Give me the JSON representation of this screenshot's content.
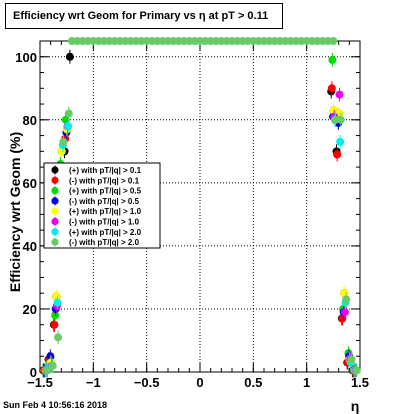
{
  "chart_data": {
    "type": "scatter",
    "title": "Efficiency wrt Geom for Primary vs    η at pT > 0.11",
    "xlabel": "η",
    "ylabel": "Efficiency wrt Geom (%)",
    "xlim": [
      -1.5,
      1.5
    ],
    "ylim": [
      0,
      105
    ],
    "grid": true,
    "legend_position": "left-middle",
    "x_ticks": [
      "−1.5",
      "−1",
      "−0.5",
      "0",
      "0.5",
      "1",
      "1.5"
    ],
    "x_tick_values": [
      -1.5,
      -1,
      -0.5,
      0,
      0.5,
      1,
      1.5
    ],
    "y_ticks": [
      "0",
      "20",
      "40",
      "60",
      "80",
      "100"
    ],
    "y_tick_values": [
      0,
      20,
      40,
      60,
      80,
      100
    ],
    "series": [
      {
        "name": "(+) with pT/|q| > 0.1",
        "color": "#000000",
        "points": [
          [
            -1.45,
            0.5
          ],
          [
            -1.4,
            4
          ],
          [
            -1.35,
            15
          ],
          [
            -1.3,
            62
          ],
          [
            -1.25,
            70
          ],
          [
            -1.2,
            100
          ],
          [
            1.25,
            89
          ],
          [
            1.3,
            70
          ],
          [
            1.35,
            17
          ],
          [
            1.4,
            3
          ],
          [
            1.45,
            0.5
          ]
        ]
      },
      {
        "name": "(-) with pT/|q| > 0.1",
        "color": "#ff0000",
        "points": [
          [
            -1.45,
            0.5
          ],
          [
            -1.4,
            4
          ],
          [
            -1.35,
            15
          ],
          [
            -1.3,
            56
          ],
          [
            -1.25,
            74
          ],
          [
            1.25,
            90
          ],
          [
            1.3,
            69
          ],
          [
            1.35,
            17
          ],
          [
            1.4,
            3
          ],
          [
            1.45,
            0.5
          ]
        ]
      },
      {
        "name": "(+) with pT/|q| > 0.5",
        "color": "#00dd00",
        "points": [
          [
            -1.45,
            0.5
          ],
          [
            -1.4,
            3
          ],
          [
            -1.35,
            18
          ],
          [
            -1.3,
            66
          ],
          [
            -1.25,
            80
          ],
          [
            1.25,
            99
          ],
          [
            1.3,
            80
          ],
          [
            1.35,
            20
          ],
          [
            1.4,
            6
          ],
          [
            1.45,
            0.5
          ]
        ]
      },
      {
        "name": "(-) with pT/|q| > 0.5",
        "color": "#0000ee",
        "points": [
          [
            -1.45,
            0.5
          ],
          [
            -1.4,
            5
          ],
          [
            -1.35,
            20
          ],
          [
            -1.3,
            61
          ],
          [
            -1.25,
            76
          ],
          [
            1.25,
            81
          ],
          [
            1.3,
            79
          ],
          [
            1.35,
            19
          ],
          [
            1.4,
            5
          ],
          [
            1.45,
            0.5
          ]
        ]
      },
      {
        "name": "(+) with pT/|q| > 1.0",
        "color": "#ffff00",
        "points": [
          [
            -1.45,
            0.5
          ],
          [
            -1.4,
            3
          ],
          [
            -1.35,
            24
          ],
          [
            -1.3,
            70
          ],
          [
            -1.25,
            77
          ],
          [
            1.25,
            83
          ],
          [
            1.3,
            82
          ],
          [
            1.35,
            25
          ],
          [
            1.4,
            4
          ],
          [
            1.45,
            0.5
          ]
        ]
      },
      {
        "name": "(-) with pT/|q| > 1.0",
        "color": "#ee00ee",
        "points": [
          [
            -1.45,
            0.5
          ],
          [
            -1.4,
            2
          ],
          [
            -1.35,
            21
          ],
          [
            -1.3,
            62
          ],
          [
            -1.25,
            78
          ],
          [
            1.25,
            81
          ],
          [
            1.3,
            88
          ],
          [
            1.35,
            19
          ],
          [
            1.4,
            4
          ],
          [
            1.45,
            0.5
          ]
        ]
      },
      {
        "name": "(+) with pT/|q| > 2.0",
        "color": "#00eeee",
        "points": [
          [
            -1.45,
            0.5
          ],
          [
            -1.4,
            2
          ],
          [
            -1.35,
            22
          ],
          [
            -1.3,
            72
          ],
          [
            -1.25,
            78
          ],
          [
            1.25,
            80
          ],
          [
            1.3,
            73
          ],
          [
            1.35,
            22
          ],
          [
            1.4,
            3
          ],
          [
            1.45,
            0.5
          ]
        ]
      },
      {
        "name": "(-) with pT/|q| > 2.0",
        "color": "#66cc66",
        "points": [
          [
            -1.45,
            0.5
          ],
          [
            -1.4,
            2
          ],
          [
            -1.35,
            11
          ],
          [
            -1.3,
            73
          ],
          [
            -1.25,
            82
          ],
          [
            1.25,
            80
          ],
          [
            1.3,
            80
          ],
          [
            1.35,
            23
          ],
          [
            1.4,
            4
          ],
          [
            1.45,
            0.5
          ]
        ]
      }
    ],
    "overflow_points": {
      "series": "(-) with pT/|q| > 2.0",
      "y": 105,
      "x_from": -1.2,
      "x_to": 1.25,
      "step": 0.05
    }
  },
  "datestamp": "Sun Feb  4 10:56:16 2018"
}
